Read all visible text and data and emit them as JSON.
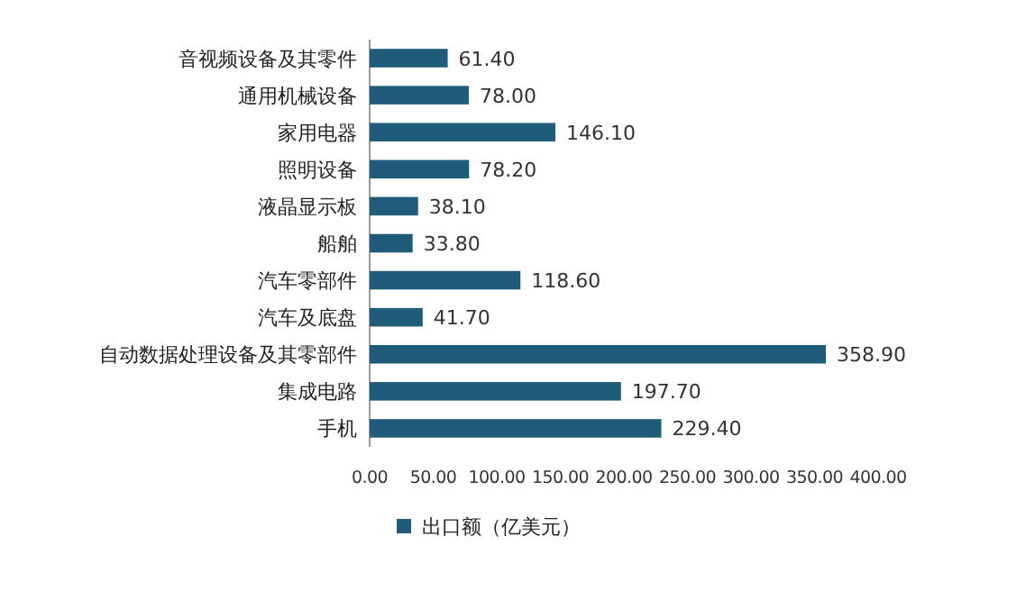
{
  "chart_data": {
    "type": "bar",
    "orientation": "horizontal",
    "categories": [
      "音视频设备及其零件",
      "通用机械设备",
      "家用电器",
      "照明设备",
      "液晶显示板",
      "船舶",
      "汽车零部件",
      "汽车及底盘",
      "自动数据处理设备及其零部件",
      "集成电路",
      "手机"
    ],
    "series": [
      {
        "name": "出口额（亿美元）",
        "color": "#1f5c7a",
        "values": [
          61.4,
          78.0,
          146.1,
          78.2,
          38.1,
          33.8,
          118.6,
          41.7,
          358.9,
          197.7,
          229.4
        ],
        "value_labels": [
          "61.40",
          "78.00",
          "146.10",
          "78.20",
          "38.10",
          "33.80",
          "118.60",
          "41.70",
          "358.90",
          "197.70",
          "229.40"
        ]
      }
    ],
    "xlim": [
      0,
      400
    ],
    "xticks": [
      {
        "value": 0,
        "label": "0.00"
      },
      {
        "value": 50,
        "label": "50.00"
      },
      {
        "value": 100,
        "label": "100.00"
      },
      {
        "value": 150,
        "label": "150.00"
      },
      {
        "value": 200,
        "label": "200.00"
      },
      {
        "value": 250,
        "label": "250.00"
      },
      {
        "value": 300,
        "label": "300.00"
      },
      {
        "value": 350,
        "label": "350.00"
      },
      {
        "value": 400,
        "label": "400.00"
      }
    ],
    "legend": "bottom"
  }
}
